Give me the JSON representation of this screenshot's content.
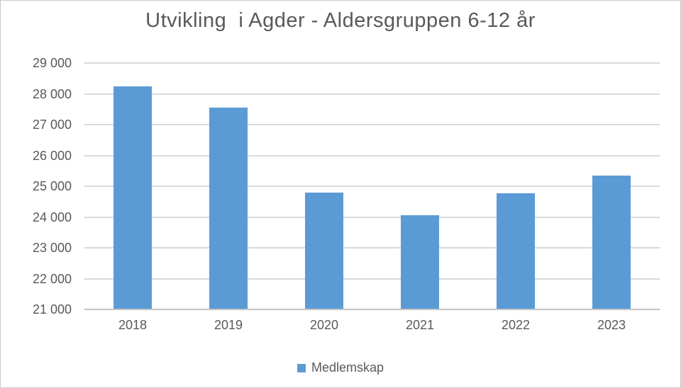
{
  "title": "Utvikling  i Agder - Aldersgruppen 6-12 år",
  "legend": {
    "label": "Medlemskap"
  },
  "colors": {
    "bar": "#5B9BD5",
    "text": "#595959",
    "gridline": "#D9D9D9",
    "axis_line": "#C3C3C3",
    "frame_border": "#C9C9C9",
    "background": "#FFFFFF"
  },
  "chart_data": {
    "type": "bar",
    "title": "Utvikling  i Agder - Aldersgruppen 6-12 år",
    "categories": [
      "2018",
      "2019",
      "2020",
      "2021",
      "2022",
      "2023"
    ],
    "series": [
      {
        "name": "Medlemskap",
        "values": [
          28250,
          27550,
          24800,
          24050,
          24780,
          25340
        ]
      }
    ],
    "xlabel": "",
    "ylabel": "",
    "ylim": [
      21000,
      29000
    ],
    "ytick_interval": 1000,
    "ytick_labels": [
      "21 000",
      "22 000",
      "23 000",
      "24 000",
      "25 000",
      "26 000",
      "27 000",
      "28 000",
      "29 000"
    ],
    "grid": true,
    "legend_position": "bottom",
    "legend_entries": [
      "Medlemskap"
    ]
  }
}
